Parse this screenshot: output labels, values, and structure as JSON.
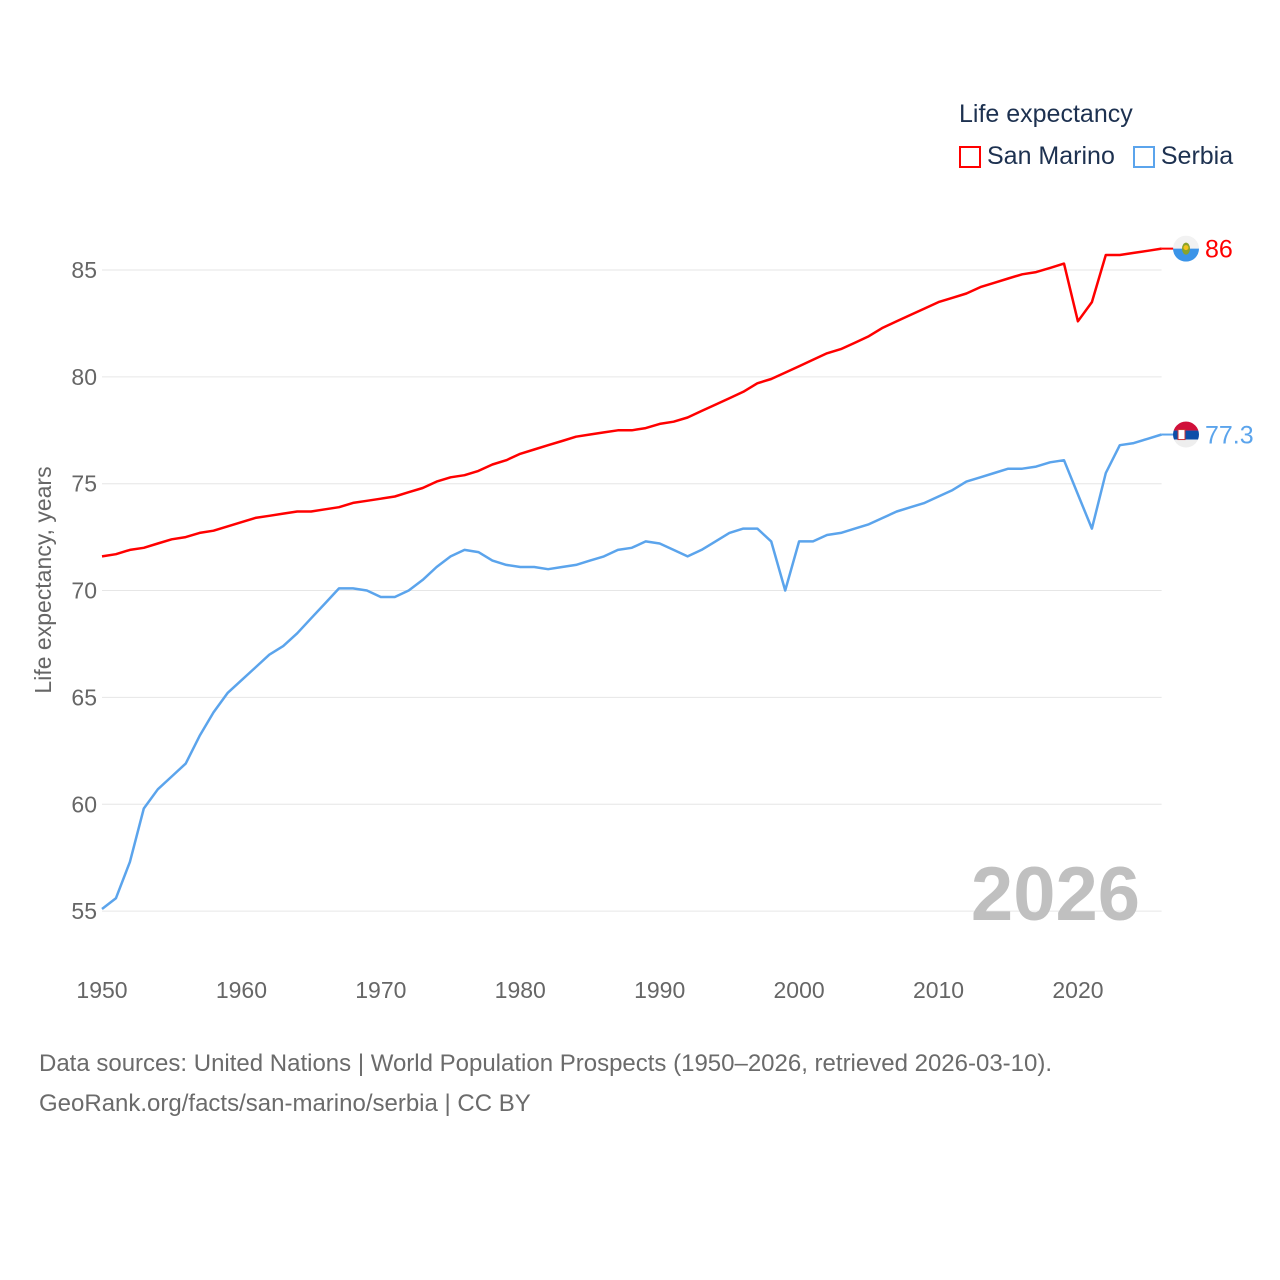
{
  "chart_data": {
    "type": "line",
    "ylabel": "Life expectancy, years",
    "xlabel": "",
    "xlim": [
      1950,
      2026
    ],
    "ylim": [
      52.5,
      88
    ],
    "x_ticks": [
      1950,
      1960,
      1970,
      1980,
      1990,
      2000,
      2010,
      2020
    ],
    "y_ticks": [
      55,
      60,
      65,
      70,
      75,
      80,
      85
    ],
    "grid": true,
    "legend_title": "Life expectancy",
    "legend_position": "top-right",
    "year_watermark": "2026",
    "x": [
      1950,
      1951,
      1952,
      1953,
      1954,
      1955,
      1956,
      1957,
      1958,
      1959,
      1960,
      1961,
      1962,
      1963,
      1964,
      1965,
      1966,
      1967,
      1968,
      1969,
      1970,
      1971,
      1972,
      1973,
      1974,
      1975,
      1976,
      1977,
      1978,
      1979,
      1980,
      1981,
      1982,
      1983,
      1984,
      1985,
      1986,
      1987,
      1988,
      1989,
      1990,
      1991,
      1992,
      1993,
      1994,
      1995,
      1996,
      1997,
      1998,
      1999,
      2000,
      2001,
      2002,
      2003,
      2004,
      2005,
      2006,
      2007,
      2008,
      2009,
      2010,
      2011,
      2012,
      2013,
      2014,
      2015,
      2016,
      2017,
      2018,
      2019,
      2020,
      2021,
      2022,
      2023,
      2024,
      2025,
      2026
    ],
    "series": [
      {
        "name": "San Marino",
        "color": "#ff0000",
        "end_label": "86",
        "flag": "san-marino",
        "values": [
          71.6,
          71.7,
          71.9,
          72.0,
          72.2,
          72.4,
          72.5,
          72.7,
          72.8,
          73.0,
          73.2,
          73.4,
          73.5,
          73.6,
          73.7,
          73.7,
          73.8,
          73.9,
          74.1,
          74.2,
          74.3,
          74.4,
          74.6,
          74.8,
          75.1,
          75.3,
          75.4,
          75.6,
          75.9,
          76.1,
          76.4,
          76.6,
          76.8,
          77.0,
          77.2,
          77.3,
          77.4,
          77.5,
          77.5,
          77.6,
          77.8,
          77.9,
          78.1,
          78.4,
          78.7,
          79.0,
          79.3,
          79.7,
          79.9,
          80.2,
          80.5,
          80.8,
          81.1,
          81.3,
          81.6,
          81.9,
          82.3,
          82.6,
          82.9,
          83.2,
          83.5,
          83.7,
          83.9,
          84.2,
          84.4,
          84.6,
          84.8,
          84.9,
          85.1,
          85.3,
          82.6,
          83.5,
          85.7,
          85.7,
          85.8,
          85.9,
          86.0
        ]
      },
      {
        "name": "Serbia",
        "color": "#5ba4ec",
        "end_label": "77.3",
        "flag": "serbia",
        "values": [
          55.1,
          55.6,
          57.3,
          59.8,
          60.7,
          61.3,
          61.9,
          63.2,
          64.3,
          65.2,
          65.8,
          66.4,
          67.0,
          67.4,
          68.0,
          68.7,
          69.4,
          70.1,
          70.1,
          70.0,
          69.7,
          69.7,
          70.0,
          70.5,
          71.1,
          71.6,
          71.9,
          71.8,
          71.4,
          71.2,
          71.1,
          71.1,
          71.0,
          71.1,
          71.2,
          71.4,
          71.6,
          71.9,
          72.0,
          72.3,
          72.2,
          71.9,
          71.6,
          71.9,
          72.3,
          72.7,
          72.9,
          72.9,
          72.3,
          70.0,
          72.3,
          72.3,
          72.6,
          72.7,
          72.9,
          73.1,
          73.4,
          73.7,
          73.9,
          74.1,
          74.4,
          74.7,
          75.1,
          75.3,
          75.5,
          75.7,
          75.7,
          75.8,
          76.0,
          76.1,
          74.5,
          72.9,
          75.5,
          76.8,
          76.9,
          77.1,
          77.3
        ]
      }
    ]
  },
  "footer": {
    "sources": "Data sources: United Nations | World Population Prospects (1950–2026, retrieved 2026-03-10).",
    "credit": "GeoRank.org/facts/san-marino/serbia | CC BY"
  }
}
